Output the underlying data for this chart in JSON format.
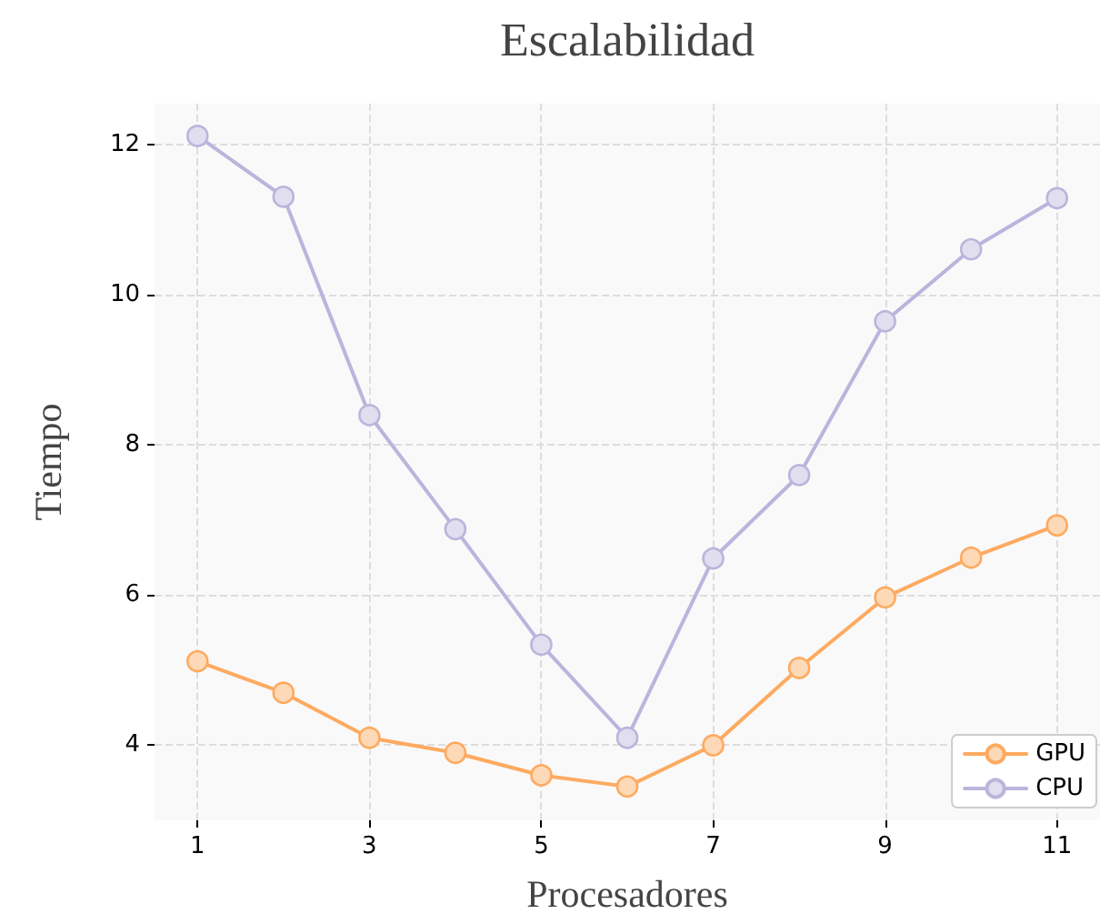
{
  "chart_data": {
    "type": "line",
    "title": "Escalabilidad",
    "xlabel": "Procesadores",
    "ylabel": "Tiempo",
    "x": [
      1,
      2,
      3,
      4,
      5,
      6,
      7,
      8,
      9,
      10,
      11
    ],
    "series": [
      {
        "name": "GPU",
        "color": "#fdaa60",
        "values": [
          5.12,
          4.7,
          4.1,
          3.9,
          3.6,
          3.45,
          4.0,
          5.03,
          5.97,
          6.5,
          6.93
        ]
      },
      {
        "name": "CPU",
        "color": "#b9b5dc",
        "values": [
          12.12,
          11.31,
          8.4,
          6.88,
          5.34,
          4.1,
          6.49,
          7.6,
          9.65,
          10.61,
          11.29
        ]
      }
    ],
    "xlim": [
      0.5,
      11.5
    ],
    "xticks": [
      1,
      3,
      5,
      7,
      9,
      11
    ],
    "ylim": [
      3.0,
      12.55
    ],
    "yticks": [
      4,
      6,
      8,
      10,
      12
    ],
    "grid": true,
    "legend": "bottom right",
    "marker": "circle",
    "line_style": "solid"
  }
}
